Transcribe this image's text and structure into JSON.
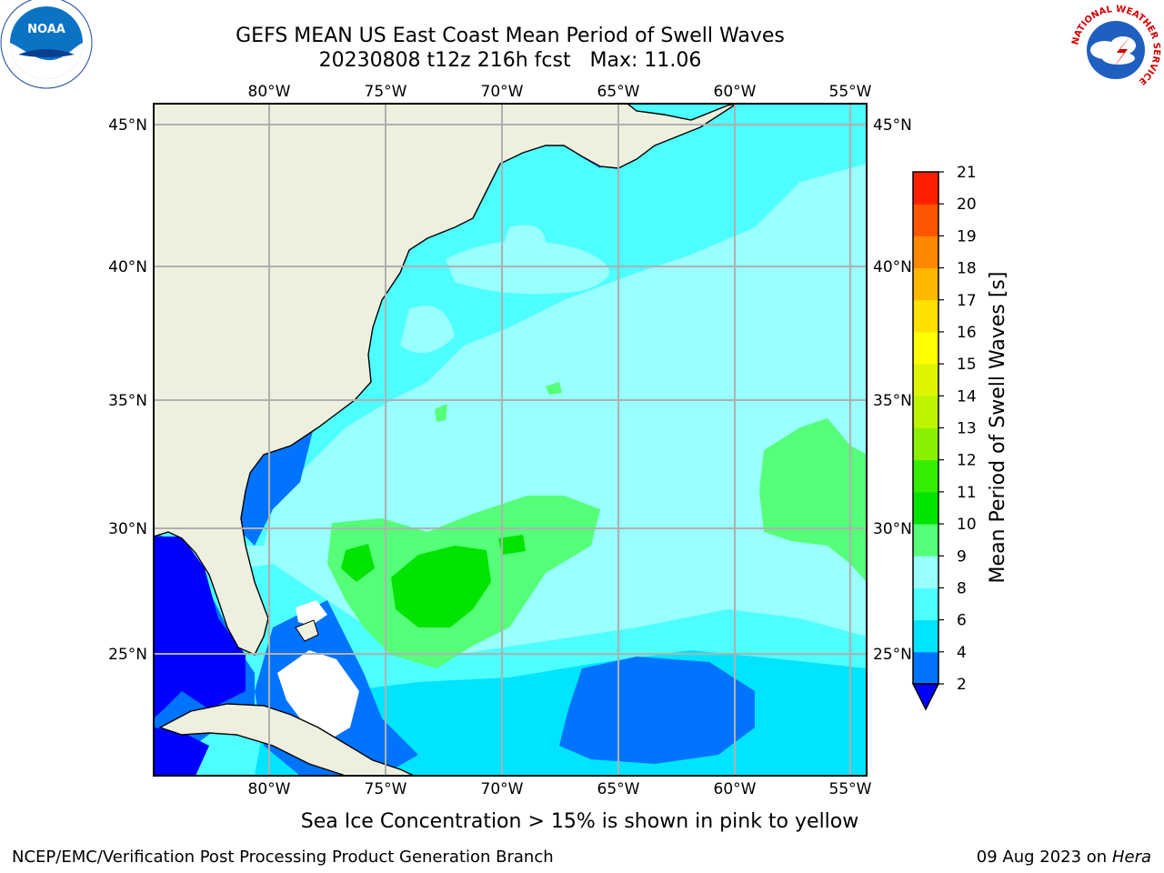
{
  "title": {
    "line1": "GEFS MEAN US East Coast Mean Period of Swell Waves",
    "line2": "20230808 t12z 216h fcst   Max: 11.06"
  },
  "map": {
    "lon_ticks": [
      "80°W",
      "75°W",
      "70°W",
      "65°W",
      "60°W",
      "55°W"
    ],
    "lat_ticks": [
      "45°N",
      "40°N",
      "35°N",
      "30°N",
      "25°N"
    ],
    "lon_range": [
      -85,
      -54
    ],
    "lat_range": [
      20.5,
      46
    ],
    "land_color": "#efefdf",
    "grid_color": "#b0b0b0"
  },
  "colorbar": {
    "label": "Mean Period of Swell Waves [s]",
    "levels": [
      "2",
      "4",
      "6",
      "8",
      "9",
      "10",
      "11",
      "12",
      "13",
      "14",
      "15",
      "16",
      "17",
      "18",
      "19",
      "20",
      "21"
    ],
    "colors": [
      "#0073ff",
      "#00e4ff",
      "#4dffff",
      "#99ffff",
      "#55ff77",
      "#00e400",
      "#33ee00",
      "#88f000",
      "#bbf500",
      "#ddf500",
      "#ffff00",
      "#ffe000",
      "#ffb800",
      "#ff8800",
      "#ff5500",
      "#ff2000"
    ],
    "under_color": "#0000ff"
  },
  "legend_note": "Sea Ice Concentration > 15% is shown in pink to yellow",
  "footer": {
    "credit": "NCEP/EMC/Verification Post Processing Product Generation Branch",
    "date": "09 Aug 2023 on",
    "host": "Hera"
  },
  "logos": {
    "left": "NOAA",
    "right_ring": "NATIONAL WEATHER SERVICE"
  }
}
